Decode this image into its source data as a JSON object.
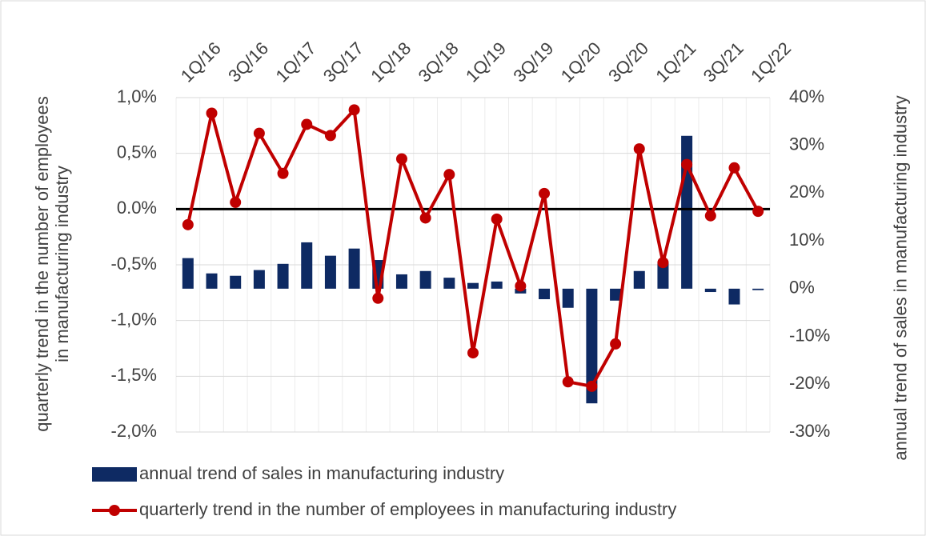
{
  "chart_data": {
    "type": "bar-line",
    "categories": [
      "1Q/16",
      null,
      "3Q/16",
      null,
      "1Q/17",
      null,
      "3Q/17",
      null,
      "1Q/18",
      null,
      "3Q/18",
      null,
      "1Q/19",
      null,
      "3Q/19",
      null,
      "1Q/20",
      null,
      "3Q/20",
      null,
      "1Q/21",
      null,
      "3Q/21",
      null,
      "1Q/22"
    ],
    "y_label": "quarterly trend in the number of employees in manufacturing industry",
    "y2_label": "annual trend of sales in manufacturing industry",
    "ylim": [
      -2,
      1
    ],
    "yticks": [
      {
        "value": -2,
        "label": "-2,0%"
      },
      {
        "value": -1.5,
        "label": "-1,5%"
      },
      {
        "value": -1,
        "label": "-1,0%"
      },
      {
        "value": -0.5,
        "label": "-0,5%"
      },
      {
        "value": 0,
        "label": "0.0%"
      },
      {
        "value": 0.5,
        "label": "0,5%"
      },
      {
        "value": 1,
        "label": "1,0%"
      }
    ],
    "y2lim": [
      -30,
      40
    ],
    "y2ticks": [
      {
        "value": -30,
        "label": "-30%"
      },
      {
        "value": -20,
        "label": "-20%"
      },
      {
        "value": -10,
        "label": "-10%"
      },
      {
        "value": 0,
        "label": "0%"
      },
      {
        "value": 10,
        "label": "10%"
      },
      {
        "value": 20,
        "label": "20%"
      },
      {
        "value": 30,
        "label": "30%"
      },
      {
        "value": 40,
        "label": "40%"
      }
    ],
    "grid": true,
    "legend": "bottom",
    "series": [
      {
        "name": "annual trend of sales in manufacturing industry",
        "type": "bar",
        "axis": "y2",
        "color": "#0e2a63",
        "values": [
          6.4,
          3.2,
          2.7,
          3.9,
          5.2,
          9.7,
          6.9,
          8.4,
          6.0,
          3.0,
          3.7,
          2.3,
          1.2,
          1.5,
          -1.0,
          -2.2,
          -4.0,
          -24,
          -2.5,
          3.7,
          5.4,
          32,
          -0.7,
          -3.3,
          -0.3
        ]
      },
      {
        "name": "quarterly trend in the number of employees in manufacturing industry",
        "type": "line",
        "axis": "y",
        "color": "#c00000",
        "values": [
          -0.14,
          0.86,
          0.06,
          0.68,
          0.32,
          0.76,
          0.66,
          0.89,
          -0.8,
          0.45,
          -0.08,
          0.31,
          -1.29,
          -0.09,
          -0.69,
          0.14,
          -1.55,
          -1.59,
          -1.21,
          0.54,
          -0.48,
          0.4,
          -0.06,
          0.37,
          -0.02
        ]
      }
    ]
  }
}
